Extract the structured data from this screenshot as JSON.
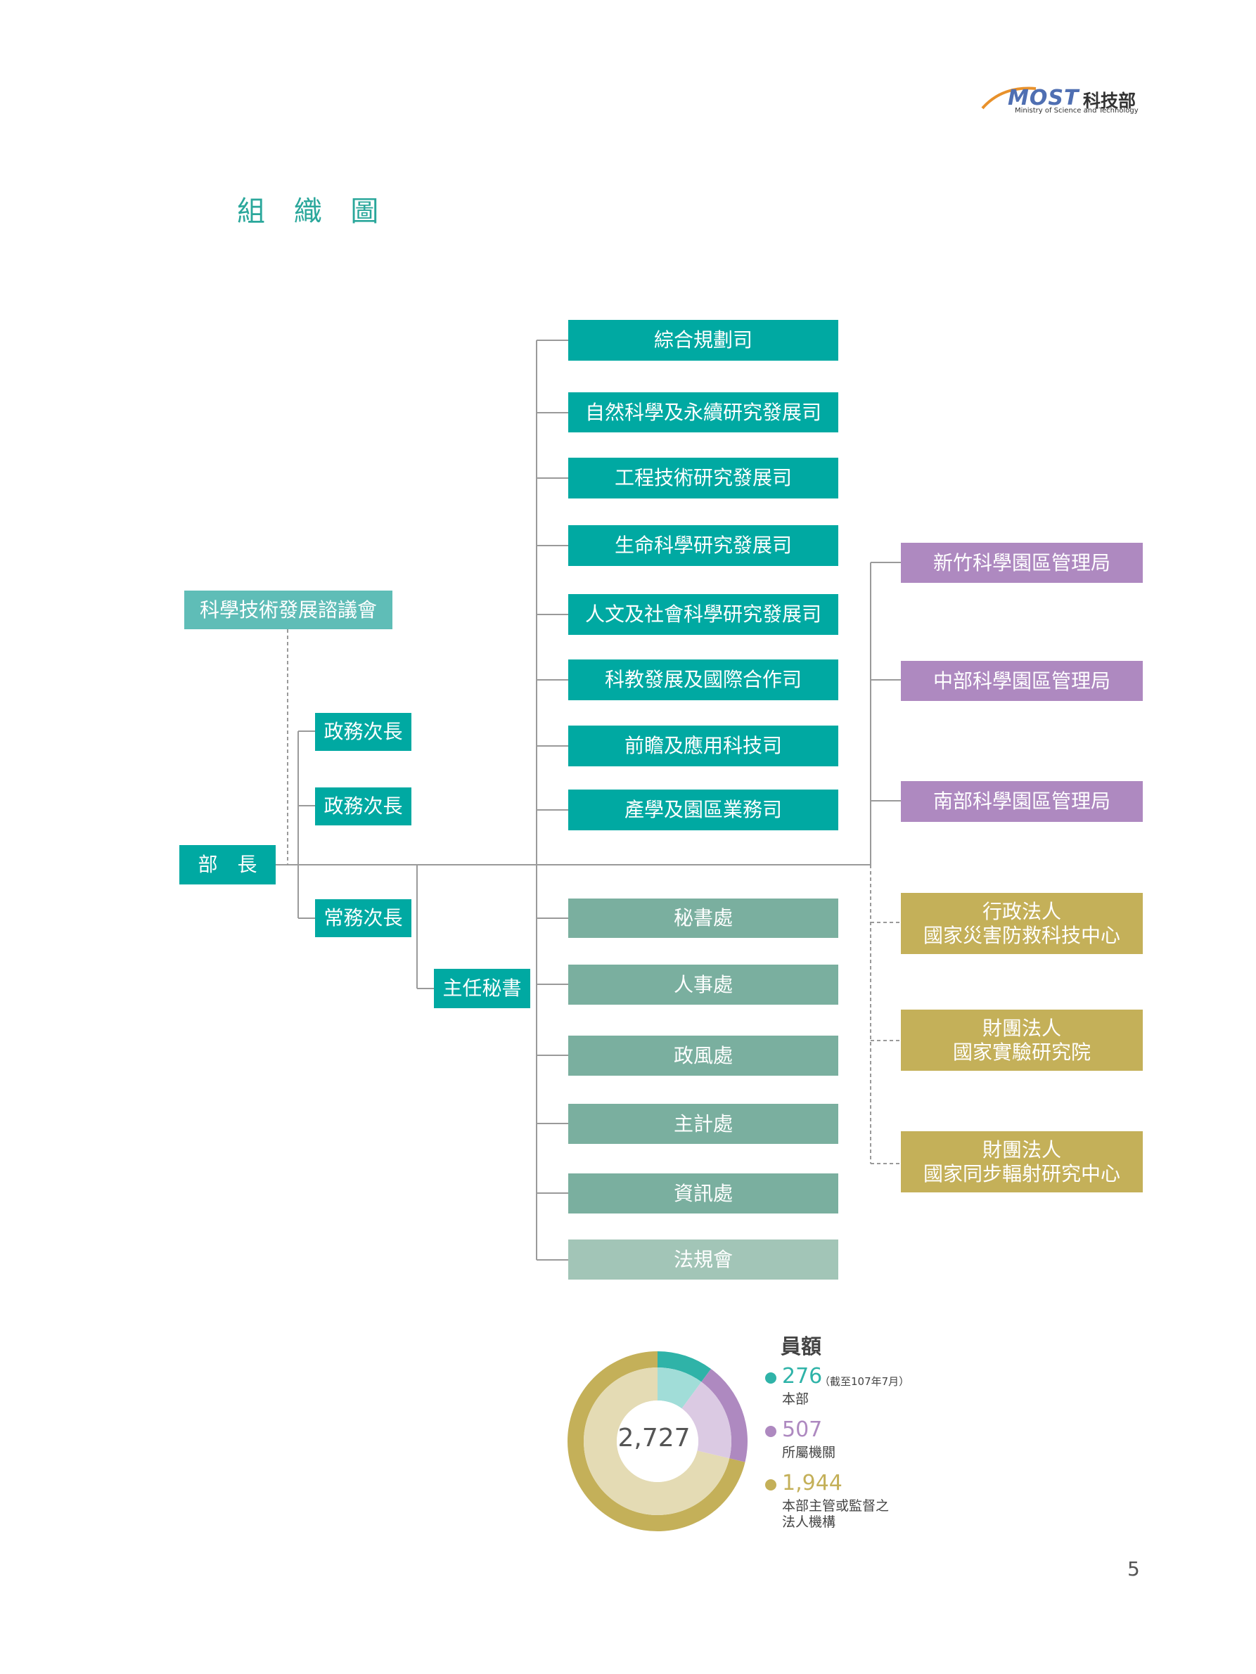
{
  "header": {
    "logo_text": "MOST",
    "logo_cn": "科技部",
    "logo_sub": "Ministry of Science and Technology"
  },
  "title": "組 織 圖",
  "minister": "部　長",
  "council": "科學技術發展諮議會",
  "deputies": [
    "政務次長",
    "政務次長",
    "常務次長"
  ],
  "chief_secretary": "主任秘書",
  "departments": [
    "綜合規劃司",
    "自然科學及永續研究發展司",
    "工程技術研究發展司",
    "生命科學研究發展司",
    "人文及社會科學研究發展司",
    "科教發展及國際合作司",
    "前瞻及應用科技司",
    "產學及園區業務司"
  ],
  "offices": [
    "秘書處",
    "人事處",
    "政風處",
    "主計處",
    "資訊處",
    "法規會"
  ],
  "park_bureaus": [
    "新竹科學園區管理局",
    "中部科學園區管理局",
    "南部科學園區管理局"
  ],
  "legal_entities": [
    {
      "line1": "行政法人",
      "line2": "國家災害防救科技中心"
    },
    {
      "line1": "財團法人",
      "line2": "國家實驗研究院"
    },
    {
      "line1": "財團法人",
      "line2": "國家同步輻射研究中心"
    }
  ],
  "staff": {
    "title": "員額",
    "total": "2,727",
    "items": [
      {
        "value": "276",
        "note": "（截至107年7月）",
        "desc": "本部",
        "color": "#2fb3a8"
      },
      {
        "value": "507",
        "desc": "所屬機關",
        "color": "#ae89c0"
      },
      {
        "value": "1,944",
        "desc": "本部主管或監督之",
        "desc2": "法人機構",
        "color": "#c4b059"
      }
    ]
  },
  "chart_data": {
    "type": "pie",
    "title": "員額",
    "categories": [
      "本部",
      "所屬機關",
      "本部主管或監督之法人機構"
    ],
    "values": [
      276,
      507,
      1944
    ],
    "total": 2727,
    "colors": [
      "#2fb3a8",
      "#ae89c0",
      "#c4b059"
    ]
  },
  "colors": {
    "teal": "#00a9a2",
    "sage": "#7aaf9f",
    "purple": "#ae89c0",
    "olive": "#c4b059",
    "title": "#2aa79b"
  },
  "page_number": "5"
}
